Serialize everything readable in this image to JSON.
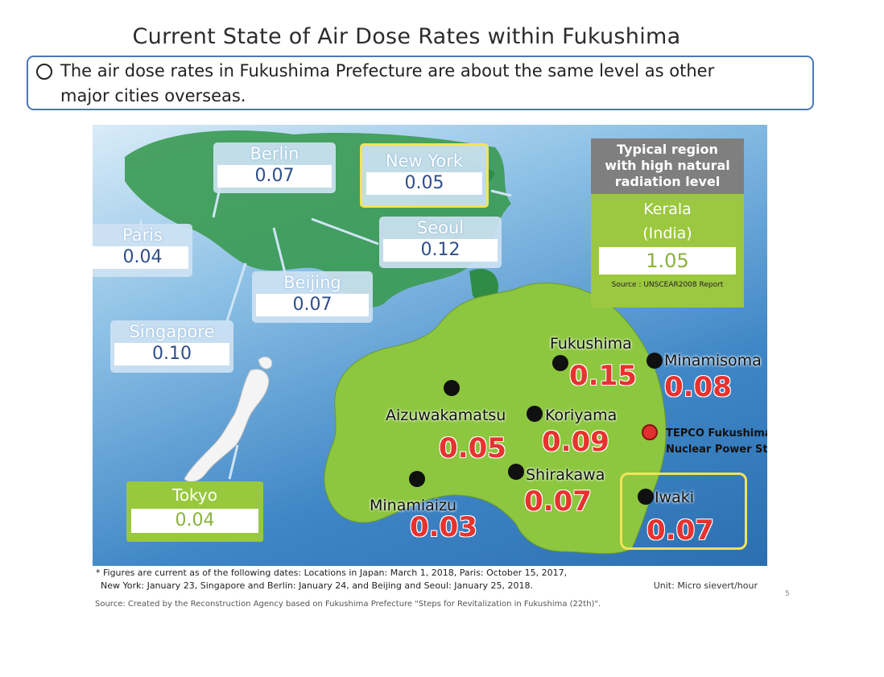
{
  "title": "Current State of Air Dose Rates within Fukushima",
  "summary": {
    "line1": "The air dose rates in Fukushima Prefecture are about the same level as other",
    "line2": "major cities overseas."
  },
  "overseas": [
    {
      "name": "Berlin",
      "value": "0.07"
    },
    {
      "name": "New York",
      "value": "0.05"
    },
    {
      "name": "Paris",
      "value": "0.04"
    },
    {
      "name": "Seoul",
      "value": "0.12"
    },
    {
      "name": "Beijing",
      "value": "0.07"
    },
    {
      "name": "Singapore",
      "value": "0.10"
    }
  ],
  "kerala": {
    "header": [
      "Typical region",
      "with high natural",
      "radiation level"
    ],
    "name": "Kerala",
    "country": "(India)",
    "value": "1.05",
    "source": "Source : UNSCEAR2008 Report"
  },
  "tokyo": {
    "name": "Tokyo",
    "value": "0.04"
  },
  "fukushima_locations": [
    {
      "name": "Fukushima",
      "value": "0.15"
    },
    {
      "name": "Minamisoma",
      "value": "0.08"
    },
    {
      "name": "Aizuwakamatsu",
      "value": "0.05"
    },
    {
      "name": "Koriyama",
      "value": "0.09"
    },
    {
      "name": "Shirakawa",
      "value": "0.07"
    },
    {
      "name": "Minamiaizu",
      "value": "0.03"
    },
    {
      "name": "Iwaki",
      "value": "0.07"
    }
  ],
  "tepco": {
    "line1": "TEPCO Fukushima Daiichi",
    "line2": "Nuclear Power Station"
  },
  "notes": {
    "line1": "* Figures are current as of the following dates: Locations in Japan: March 1, 2018, Paris: October 15, 2017,",
    "line2": "New York: January 23, Singapore and Berlin: January 24, and Beijing and Seoul: January 25, 2018.",
    "unit": "Unit: Micro sievert/hour"
  },
  "source": "Source: Created by the Reconstruction Agency based on Fukushima Prefecture \"Steps for Revitalization in Fukushima (22th)\".",
  "page_number": "5",
  "colors": {
    "land": "#8dc63f",
    "sea": "#3f86c6",
    "highlight": "#f2e35a",
    "value_red": "#e8322f"
  }
}
